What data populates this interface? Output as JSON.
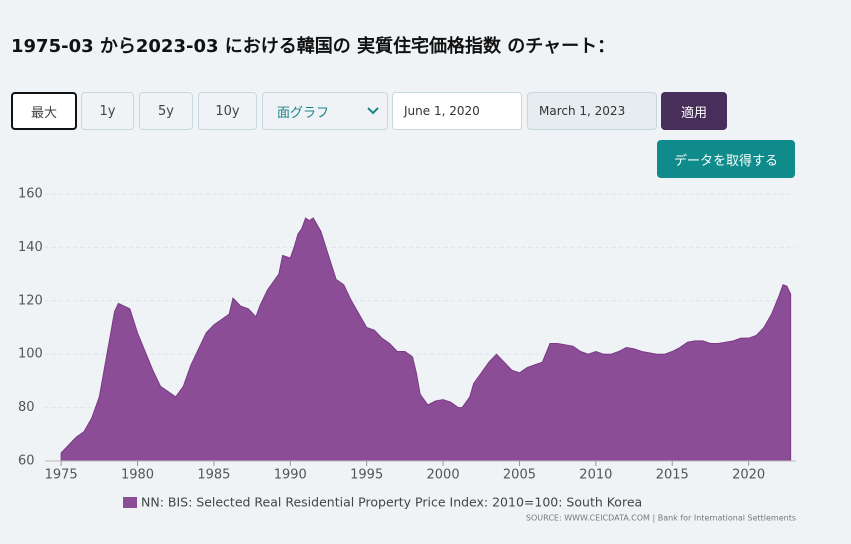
{
  "header": {
    "title": "1975-03 から2023-03 における韓国の 実質住宅価格指数 のチャート："
  },
  "controls": {
    "ranges": [
      "最大",
      "1y",
      "5y",
      "10y"
    ],
    "chart_type": "面グラフ",
    "start_date": "June 1, 2020",
    "end_date": "March 1, 2023",
    "apply": "適用",
    "download": "データを取得する"
  },
  "chart_data": {
    "type": "area",
    "x": [
      1975,
      1975.5,
      1976,
      1976.5,
      1977,
      1977.5,
      1978,
      1978.5,
      1978.75,
      1979.5,
      1980,
      1980.5,
      1981,
      1981.5,
      1982,
      1982.5,
      1983,
      1983.5,
      1984,
      1984.5,
      1985,
      1985.5,
      1986,
      1986.25,
      1986.75,
      1987.25,
      1987.75,
      1988,
      1988.5,
      1989,
      1989.25,
      1989.5,
      1990,
      1990.25,
      1990.5,
      1990.75,
      1991,
      1991.25,
      1991.5,
      1992,
      1992.5,
      1993,
      1993.5,
      1994,
      1994.5,
      1995,
      1995.5,
      1996,
      1996.5,
      1997,
      1997.5,
      1998,
      1998.25,
      1998.5,
      1999,
      1999.5,
      2000,
      2000.5,
      2001,
      2001.25,
      2001.75,
      2002,
      2002.5,
      2003,
      2003.5,
      2004,
      2004.5,
      2005,
      2005.5,
      2006,
      2006.5,
      2007,
      2007.5,
      2008,
      2008.5,
      2009,
      2009.5,
      2010,
      2010.5,
      2011,
      2011.5,
      2012,
      2012.5,
      2013,
      2013.5,
      2014,
      2014.5,
      2015,
      2015.5,
      2016,
      2016.5,
      2017,
      2017.5,
      2018,
      2018.5,
      2019,
      2019.5,
      2020,
      2020.5,
      2021,
      2021.5,
      2022,
      2022.25,
      2022.5,
      2022.75
    ],
    "series": [
      {
        "name": "NN: BIS: Selected Real Residential Property Price Index: 2010=100: South Korea",
        "color": "#8a4d96",
        "values": [
          63,
          66,
          69,
          71,
          76,
          84,
          100,
          116,
          119,
          117,
          108,
          101,
          94,
          88,
          86,
          84,
          88,
          96,
          102,
          108,
          111,
          113,
          115,
          121,
          118,
          117,
          114,
          118,
          124,
          128,
          130,
          137,
          136,
          140,
          145,
          147,
          151,
          150,
          151,
          146,
          137,
          128,
          126,
          120,
          115,
          110,
          109,
          106,
          104,
          101,
          101,
          99,
          93,
          85,
          81,
          82.5,
          83,
          82,
          80,
          80,
          84,
          89,
          93,
          97,
          100,
          97,
          94,
          93,
          95,
          96,
          97,
          104,
          104,
          103.5,
          103,
          101,
          100,
          101,
          100,
          100,
          101,
          102.5,
          102,
          101,
          100.5,
          100,
          100,
          101,
          102.5,
          104.5,
          105,
          105,
          104,
          104,
          104.5,
          105,
          106,
          106,
          107,
          110,
          115,
          122,
          126,
          125.5,
          122.5
        ]
      }
    ],
    "xlim": [
      1974.6,
      2023.1
    ],
    "ylim": [
      60,
      160
    ],
    "xticks": [
      1975,
      1980,
      1985,
      1990,
      1995,
      2000,
      2005,
      2010,
      2015,
      2020
    ],
    "yticks": [
      60,
      80,
      100,
      120,
      140,
      160
    ],
    "grid": true,
    "source": "SOURCE: WWW.CEICDATA.COM | Bank for International Settlements"
  }
}
